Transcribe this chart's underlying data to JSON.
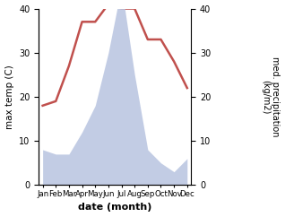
{
  "months": [
    "Jan",
    "Feb",
    "Mar",
    "Apr",
    "May",
    "Jun",
    "Jul",
    "Aug",
    "Sep",
    "Oct",
    "Nov",
    "Dec"
  ],
  "temperature": [
    18,
    19,
    27,
    37,
    37,
    41,
    40,
    40,
    33,
    33,
    28,
    22
  ],
  "precipitation": [
    8,
    7,
    7,
    12,
    18,
    30,
    45,
    25,
    8,
    5,
    3,
    6
  ],
  "temp_color": "#c0504d",
  "precip_fill_color": "#b8c4e0",
  "xlabel": "date (month)",
  "ylabel_left": "max temp (C)",
  "ylabel_right": "med. precipitation\n(kg/m2)",
  "ylim_left": [
    0,
    40
  ],
  "ylim_right": [
    0,
    40
  ],
  "yticks_left": [
    0,
    10,
    20,
    30,
    40
  ],
  "yticks_right": [
    0,
    10,
    20,
    30,
    40
  ],
  "temp_linewidth": 1.8,
  "bg_color": "#ffffff"
}
